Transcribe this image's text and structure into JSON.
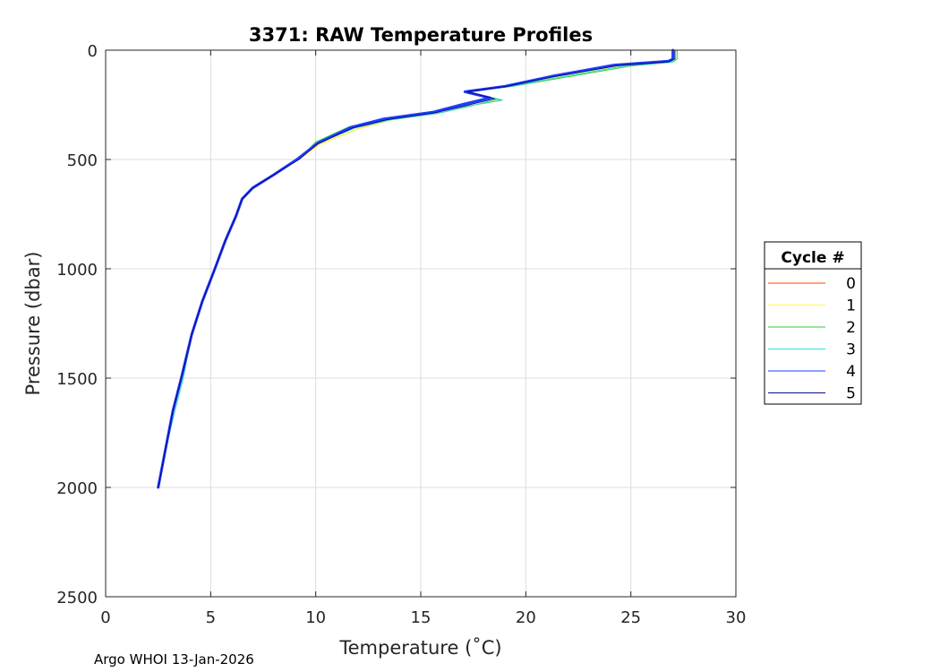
{
  "chart_data": {
    "type": "line",
    "title": "3371: RAW Temperature Profiles",
    "xlabel": "Temperature (˚C)",
    "ylabel": "Pressure (dbar)",
    "xlim": [
      0,
      30
    ],
    "ylim": [
      0,
      2500
    ],
    "y_reversed": true,
    "xticks": [
      0,
      5,
      10,
      15,
      20,
      25,
      30
    ],
    "yticks": [
      0,
      500,
      1000,
      1500,
      2000,
      2500
    ],
    "grid": true,
    "legend": {
      "title": "Cycle #",
      "placement": "right-outside"
    },
    "series": [
      {
        "name": "0",
        "color": "#ff4500",
        "width": 1,
        "points": [
          [
            27.1,
            0
          ],
          [
            27.1,
            40
          ],
          [
            26.8,
            52
          ],
          [
            24.5,
            70
          ],
          [
            21.5,
            120
          ],
          [
            19.2,
            165
          ],
          [
            17.2,
            190
          ],
          [
            18.8,
            230
          ],
          [
            17.0,
            260
          ],
          [
            15.8,
            290
          ],
          [
            13.5,
            320
          ],
          [
            12.0,
            360
          ],
          [
            10.2,
            430
          ],
          [
            9.2,
            500
          ],
          [
            8.0,
            570
          ],
          [
            7.0,
            630
          ],
          [
            6.5,
            680
          ],
          [
            6.2,
            760
          ],
          [
            5.7,
            870
          ],
          [
            5.2,
            1000
          ],
          [
            4.6,
            1150
          ],
          [
            4.1,
            1300
          ],
          [
            3.6,
            1500
          ],
          [
            3.2,
            1650
          ],
          [
            2.8,
            1850
          ],
          [
            2.5,
            2000
          ]
        ]
      },
      {
        "name": "1",
        "color": "#ffff33",
        "width": 1,
        "points": [
          [
            27.1,
            0
          ],
          [
            27.1,
            40
          ],
          [
            26.9,
            52
          ],
          [
            24.6,
            70
          ],
          [
            21.6,
            120
          ],
          [
            19.2,
            165
          ],
          [
            17.2,
            190
          ],
          [
            18.7,
            230
          ],
          [
            17.1,
            260
          ],
          [
            15.8,
            290
          ],
          [
            13.6,
            320
          ],
          [
            12.0,
            360
          ],
          [
            10.2,
            430
          ],
          [
            9.2,
            500
          ],
          [
            8.0,
            570
          ],
          [
            7.0,
            630
          ],
          [
            6.5,
            680
          ],
          [
            6.2,
            760
          ],
          [
            5.7,
            870
          ],
          [
            5.2,
            1000
          ],
          [
            4.6,
            1150
          ],
          [
            4.1,
            1300
          ],
          [
            3.6,
            1500
          ],
          [
            3.2,
            1650
          ],
          [
            2.8,
            1850
          ],
          [
            2.5,
            2000
          ]
        ]
      },
      {
        "name": "2",
        "color": "#33cc33",
        "width": 1,
        "points": [
          [
            27.2,
            0
          ],
          [
            27.2,
            40
          ],
          [
            27.0,
            55
          ],
          [
            25.0,
            72
          ],
          [
            21.8,
            125
          ],
          [
            19.4,
            165
          ],
          [
            17.3,
            190
          ],
          [
            18.6,
            225
          ],
          [
            17.4,
            255
          ],
          [
            16.0,
            285
          ],
          [
            13.4,
            315
          ],
          [
            11.6,
            350
          ],
          [
            10.0,
            420
          ],
          [
            9.2,
            500
          ],
          [
            8.0,
            570
          ],
          [
            7.0,
            630
          ],
          [
            6.5,
            680
          ],
          [
            6.2,
            760
          ],
          [
            5.7,
            870
          ],
          [
            5.2,
            1000
          ],
          [
            4.6,
            1150
          ],
          [
            4.1,
            1300
          ],
          [
            3.6,
            1500
          ],
          [
            3.2,
            1650
          ],
          [
            2.8,
            1850
          ],
          [
            2.5,
            2000
          ]
        ]
      },
      {
        "name": "3",
        "color": "#33dddd",
        "width": 1,
        "points": [
          [
            27.1,
            0
          ],
          [
            27.1,
            40
          ],
          [
            26.9,
            55
          ],
          [
            24.8,
            70
          ],
          [
            21.7,
            122
          ],
          [
            19.3,
            165
          ],
          [
            17.2,
            190
          ],
          [
            18.9,
            228
          ],
          [
            17.1,
            258
          ],
          [
            15.9,
            288
          ],
          [
            13.6,
            318
          ],
          [
            11.9,
            355
          ],
          [
            10.1,
            425
          ],
          [
            9.2,
            500
          ],
          [
            8.0,
            570
          ],
          [
            7.0,
            630
          ],
          [
            6.5,
            680
          ],
          [
            6.2,
            760
          ],
          [
            5.7,
            870
          ],
          [
            5.2,
            1000
          ],
          [
            4.6,
            1150
          ],
          [
            4.1,
            1300
          ],
          [
            3.7,
            1500
          ],
          [
            3.3,
            1650
          ],
          [
            2.8,
            1850
          ],
          [
            2.5,
            2000
          ]
        ]
      },
      {
        "name": "4",
        "color": "#1f3bff",
        "width": 3,
        "points": [
          [
            27.0,
            0
          ],
          [
            27.0,
            40
          ],
          [
            26.8,
            50
          ],
          [
            24.2,
            68
          ],
          [
            21.3,
            118
          ],
          [
            19.0,
            165
          ],
          [
            17.1,
            190
          ],
          [
            18.3,
            218
          ],
          [
            17.0,
            248
          ],
          [
            15.6,
            283
          ],
          [
            13.2,
            315
          ],
          [
            11.7,
            352
          ],
          [
            10.1,
            425
          ],
          [
            9.1,
            500
          ],
          [
            8.0,
            570
          ],
          [
            7.0,
            630
          ],
          [
            6.5,
            680
          ],
          [
            6.2,
            760
          ],
          [
            5.7,
            870
          ],
          [
            5.2,
            1000
          ],
          [
            4.6,
            1150
          ],
          [
            4.1,
            1300
          ],
          [
            3.6,
            1500
          ],
          [
            3.2,
            1650
          ],
          [
            2.8,
            1850
          ],
          [
            2.5,
            2000
          ]
        ]
      },
      {
        "name": "5",
        "color": "#0a0a8a",
        "width": 1,
        "points": [
          [
            27.1,
            0
          ],
          [
            27.1,
            40
          ],
          [
            26.8,
            52
          ],
          [
            24.4,
            70
          ],
          [
            21.4,
            120
          ],
          [
            19.1,
            165
          ],
          [
            17.2,
            190
          ],
          [
            18.5,
            222
          ],
          [
            17.2,
            252
          ],
          [
            15.7,
            286
          ],
          [
            13.4,
            318
          ],
          [
            11.8,
            355
          ],
          [
            10.1,
            428
          ],
          [
            9.2,
            500
          ],
          [
            8.0,
            570
          ],
          [
            7.0,
            630
          ],
          [
            6.5,
            680
          ],
          [
            6.2,
            760
          ],
          [
            5.7,
            870
          ],
          [
            5.2,
            1000
          ],
          [
            4.6,
            1150
          ],
          [
            4.1,
            1300
          ],
          [
            3.6,
            1500
          ],
          [
            3.2,
            1650
          ],
          [
            2.8,
            1850
          ],
          [
            2.5,
            2000
          ]
        ]
      }
    ]
  },
  "footer": "Argo WHOI 13-Jan-2026"
}
